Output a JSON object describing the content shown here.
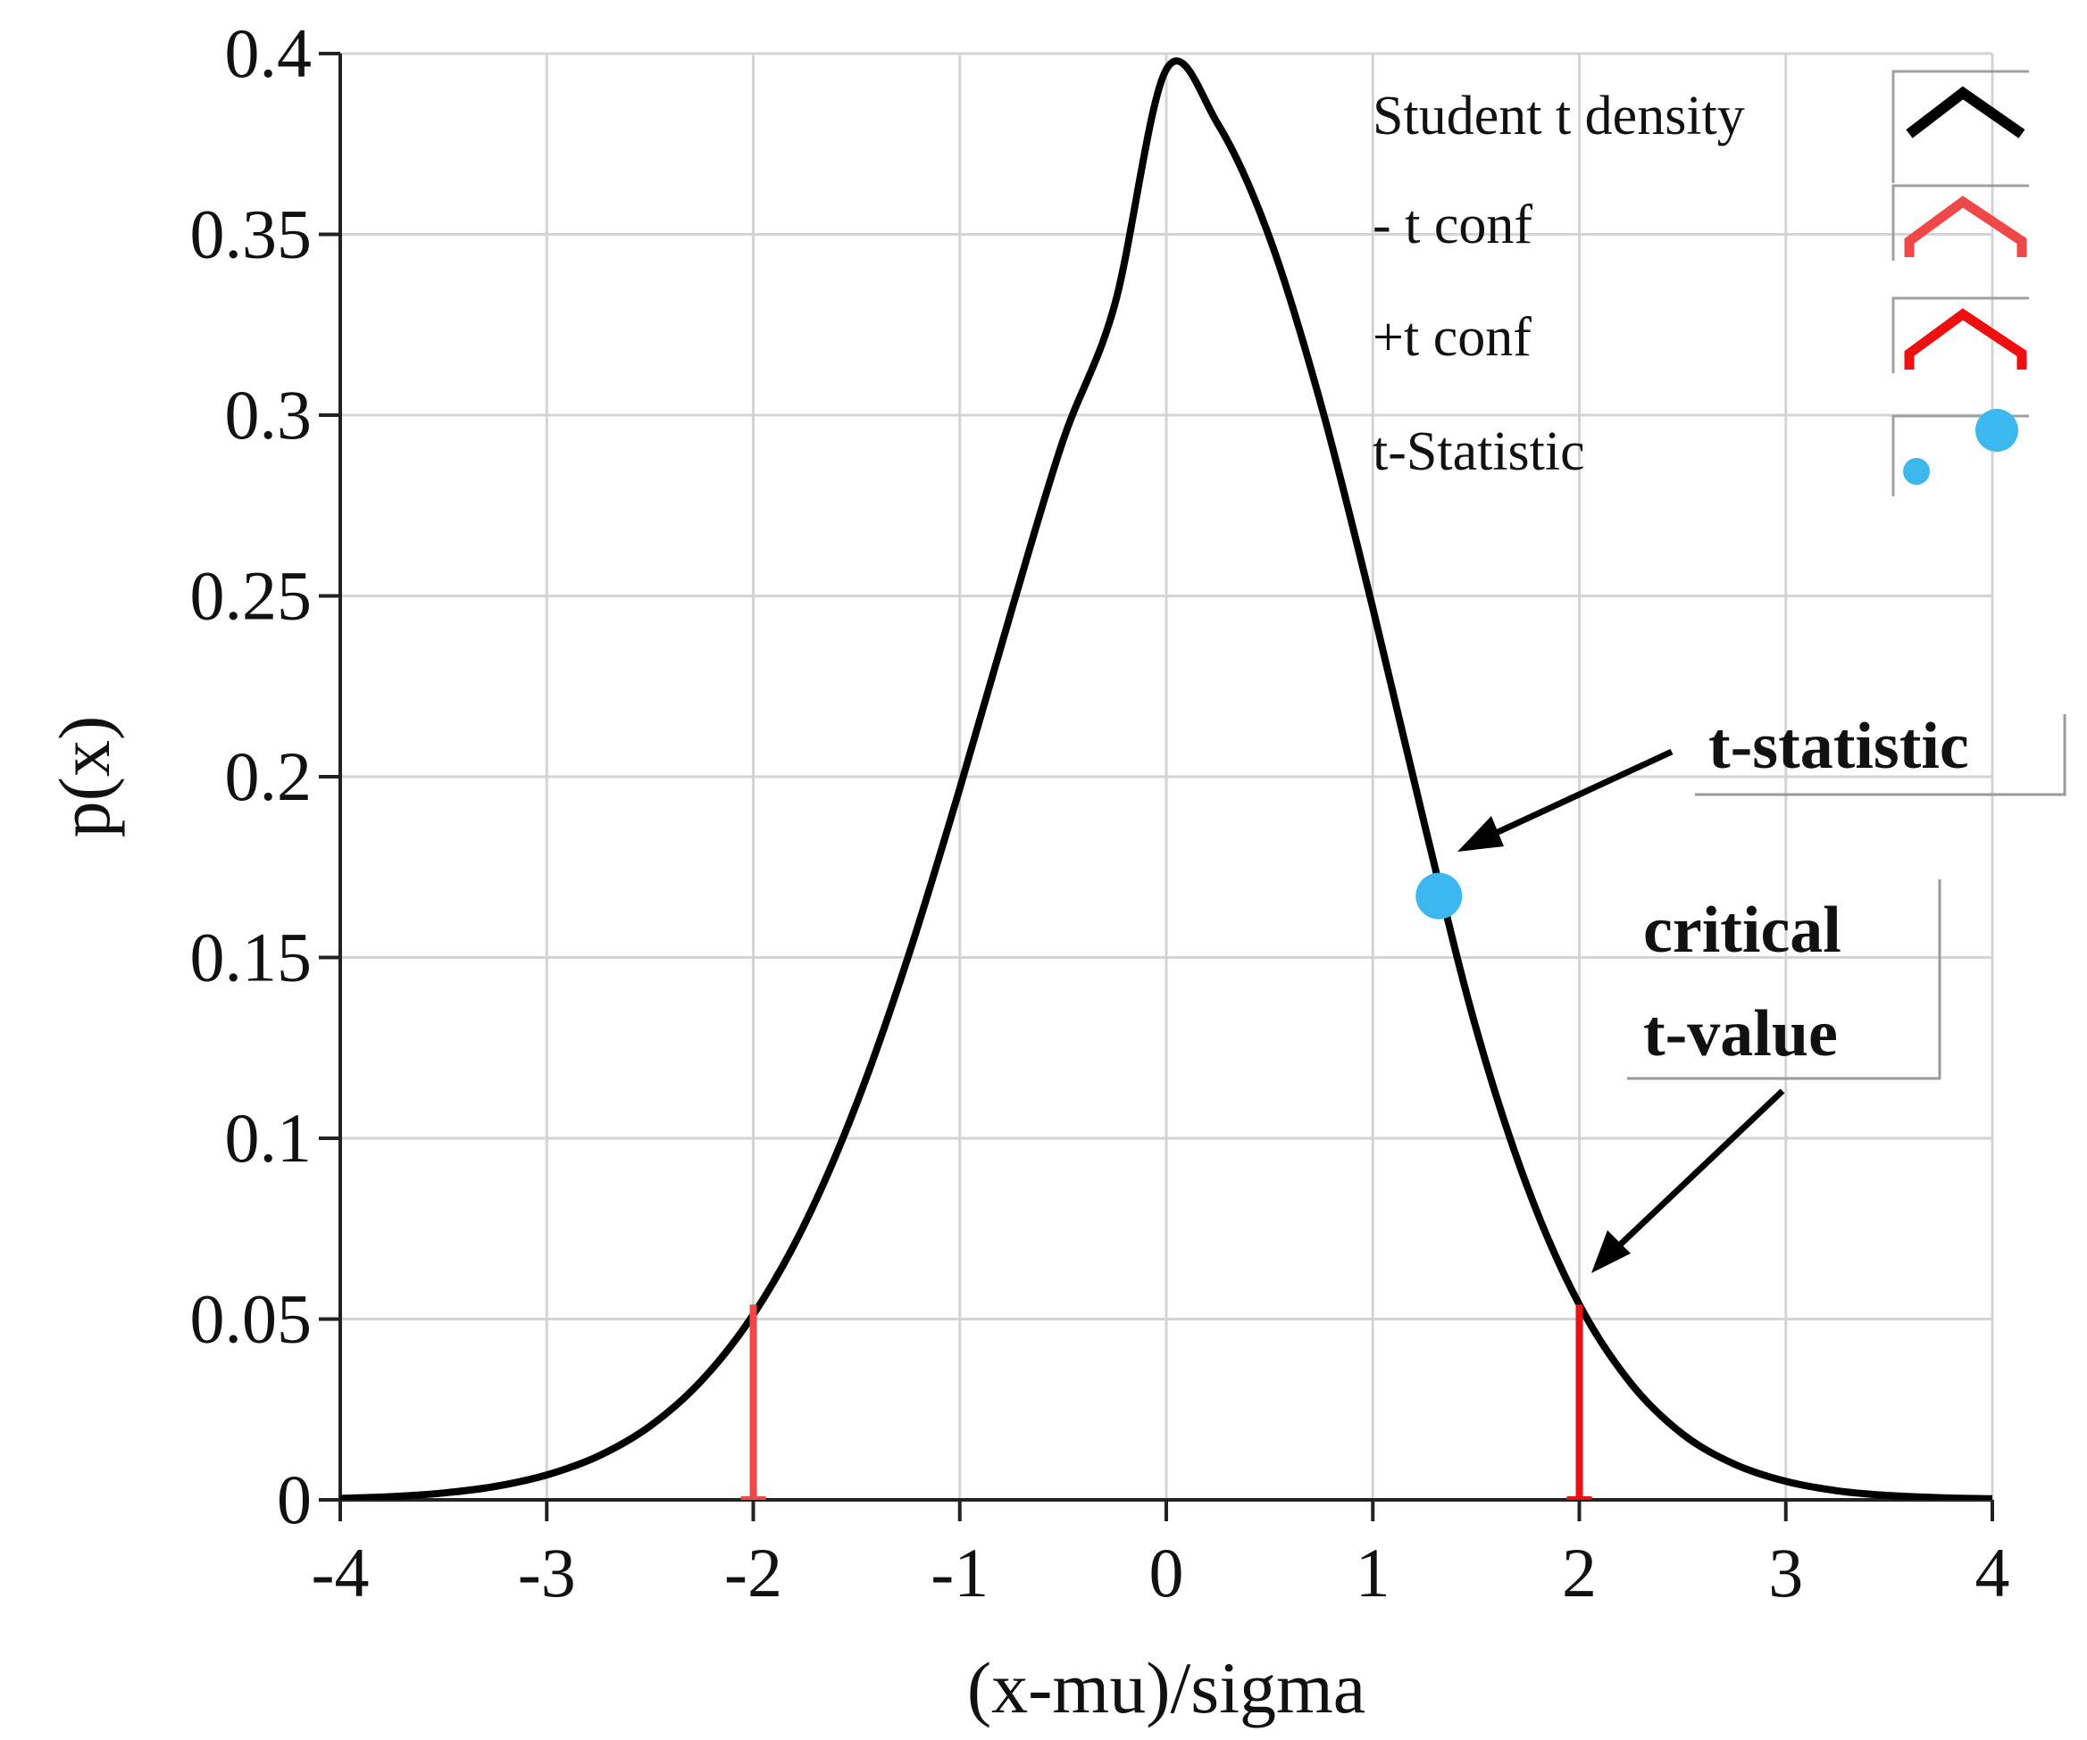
{
  "colors": {
    "density": "#000000",
    "neg_conf": "#f04848",
    "pos_conf": "#ee1010",
    "statistic": "#3cb8ee",
    "grid": "#d4d4d4",
    "annotation_border": "#9a9a9a"
  },
  "chart_data": {
    "type": "line",
    "xlabel": "(x-mu)/sigma",
    "ylabel": "p(x)",
    "xlim": [
      -4,
      4
    ],
    "ylim": [
      0,
      0.4
    ],
    "xticks": [
      -4,
      -3,
      -2,
      -1,
      0,
      1,
      2,
      3,
      4
    ],
    "xtick_labels": [
      "-4",
      "-3",
      "-2",
      "-1",
      "0",
      "1",
      "2",
      "3",
      "4"
    ],
    "yticks": [
      0,
      0.05,
      0.1,
      0.15,
      0.2,
      0.25,
      0.3,
      0.35,
      0.4
    ],
    "ytick_labels": [
      "0",
      "0.05",
      "0.1",
      "0.15",
      "0.2",
      "0.25",
      "0.3",
      "0.35",
      "0.4"
    ],
    "grid": true,
    "legend_position": "top-right",
    "series": [
      {
        "name": "Student t  density",
        "kind": "line",
        "color": "#000000",
        "x": [
          -4,
          -3.75,
          -3.5,
          -3.25,
          -3,
          -2.75,
          -2.5,
          -2.25,
          -2,
          -1.75,
          -1.5,
          -1.25,
          -1,
          -0.75,
          -0.5,
          -0.25,
          0,
          0.25,
          0.5,
          0.75,
          1,
          1.25,
          1.5,
          1.75,
          2,
          2.25,
          2.5,
          2.75,
          3,
          3.25,
          3.5,
          3.75,
          4
        ],
        "y": [
          0.0004,
          0.0009,
          0.0019,
          0.0037,
          0.0069,
          0.0121,
          0.0204,
          0.033,
          0.0512,
          0.0764,
          0.1095,
          0.1502,
          0.1968,
          0.2459,
          0.293,
          0.3305,
          0.3956,
          0.3805,
          0.3491,
          0.3028,
          0.2466,
          0.1869,
          0.1304,
          0.0863,
          0.054,
          0.0322,
          0.0182,
          0.0099,
          0.0051,
          0.0025,
          0.0012,
          0.0006,
          0.0003
        ]
      },
      {
        "name": "- t conf",
        "kind": "stem",
        "color": "#f04848",
        "x": [
          -2.0
        ],
        "y": [
          0.054
        ]
      },
      {
        "name": "+t conf",
        "kind": "stem",
        "color": "#ee1010",
        "x": [
          2.0
        ],
        "y": [
          0.054
        ]
      },
      {
        "name": "t-Statistic",
        "kind": "scatter",
        "color": "#3cb8ee",
        "x": [
          1.32
        ],
        "y": [
          0.167
        ]
      }
    ],
    "annotations": [
      {
        "id": "t-statistic",
        "lines": [
          "t-statistic"
        ],
        "points_to": [
          1.32,
          0.167
        ]
      },
      {
        "id": "critical",
        "lines": [
          "critical",
          "t-value"
        ],
        "points_to": [
          2.0,
          0.054
        ]
      }
    ]
  }
}
